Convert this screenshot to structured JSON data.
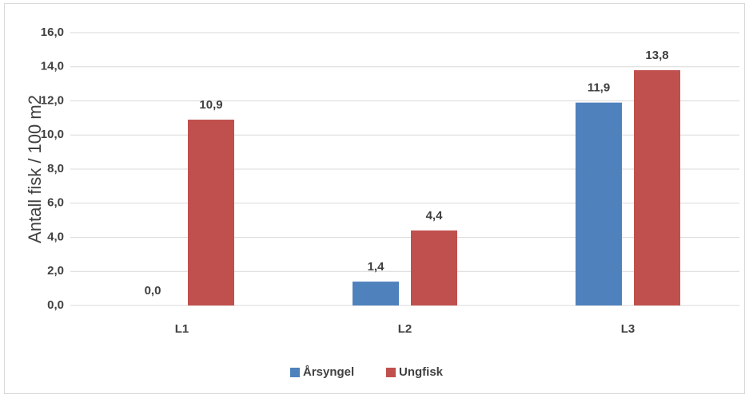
{
  "chart_data": {
    "type": "bar",
    "y_label": "Antall fisk / 100 m2",
    "categories": [
      "L1",
      "L2",
      "L3"
    ],
    "series": [
      {
        "name": "Årsyngel",
        "color": "#4f81bd",
        "values": [
          0.0,
          1.4,
          11.9
        ],
        "value_labels": [
          "0,0",
          "1,4",
          "11,9"
        ]
      },
      {
        "name": "Ungfisk",
        "color": "#c0504d",
        "values": [
          10.9,
          4.4,
          13.8
        ],
        "value_labels": [
          "10,9",
          "4,4",
          "13,8"
        ]
      }
    ],
    "ylim": [
      0,
      16
    ],
    "yticks": [
      {
        "value": 0,
        "label": "0,0"
      },
      {
        "value": 2,
        "label": "2,0"
      },
      {
        "value": 4,
        "label": "4,0"
      },
      {
        "value": 6,
        "label": "6,0"
      },
      {
        "value": 8,
        "label": "8,0"
      },
      {
        "value": 10,
        "label": "10,0"
      },
      {
        "value": 12,
        "label": "12,0"
      },
      {
        "value": 14,
        "label": "14,0"
      },
      {
        "value": 16,
        "label": "16,0"
      }
    ],
    "grid": true,
    "legend": "bottom"
  }
}
